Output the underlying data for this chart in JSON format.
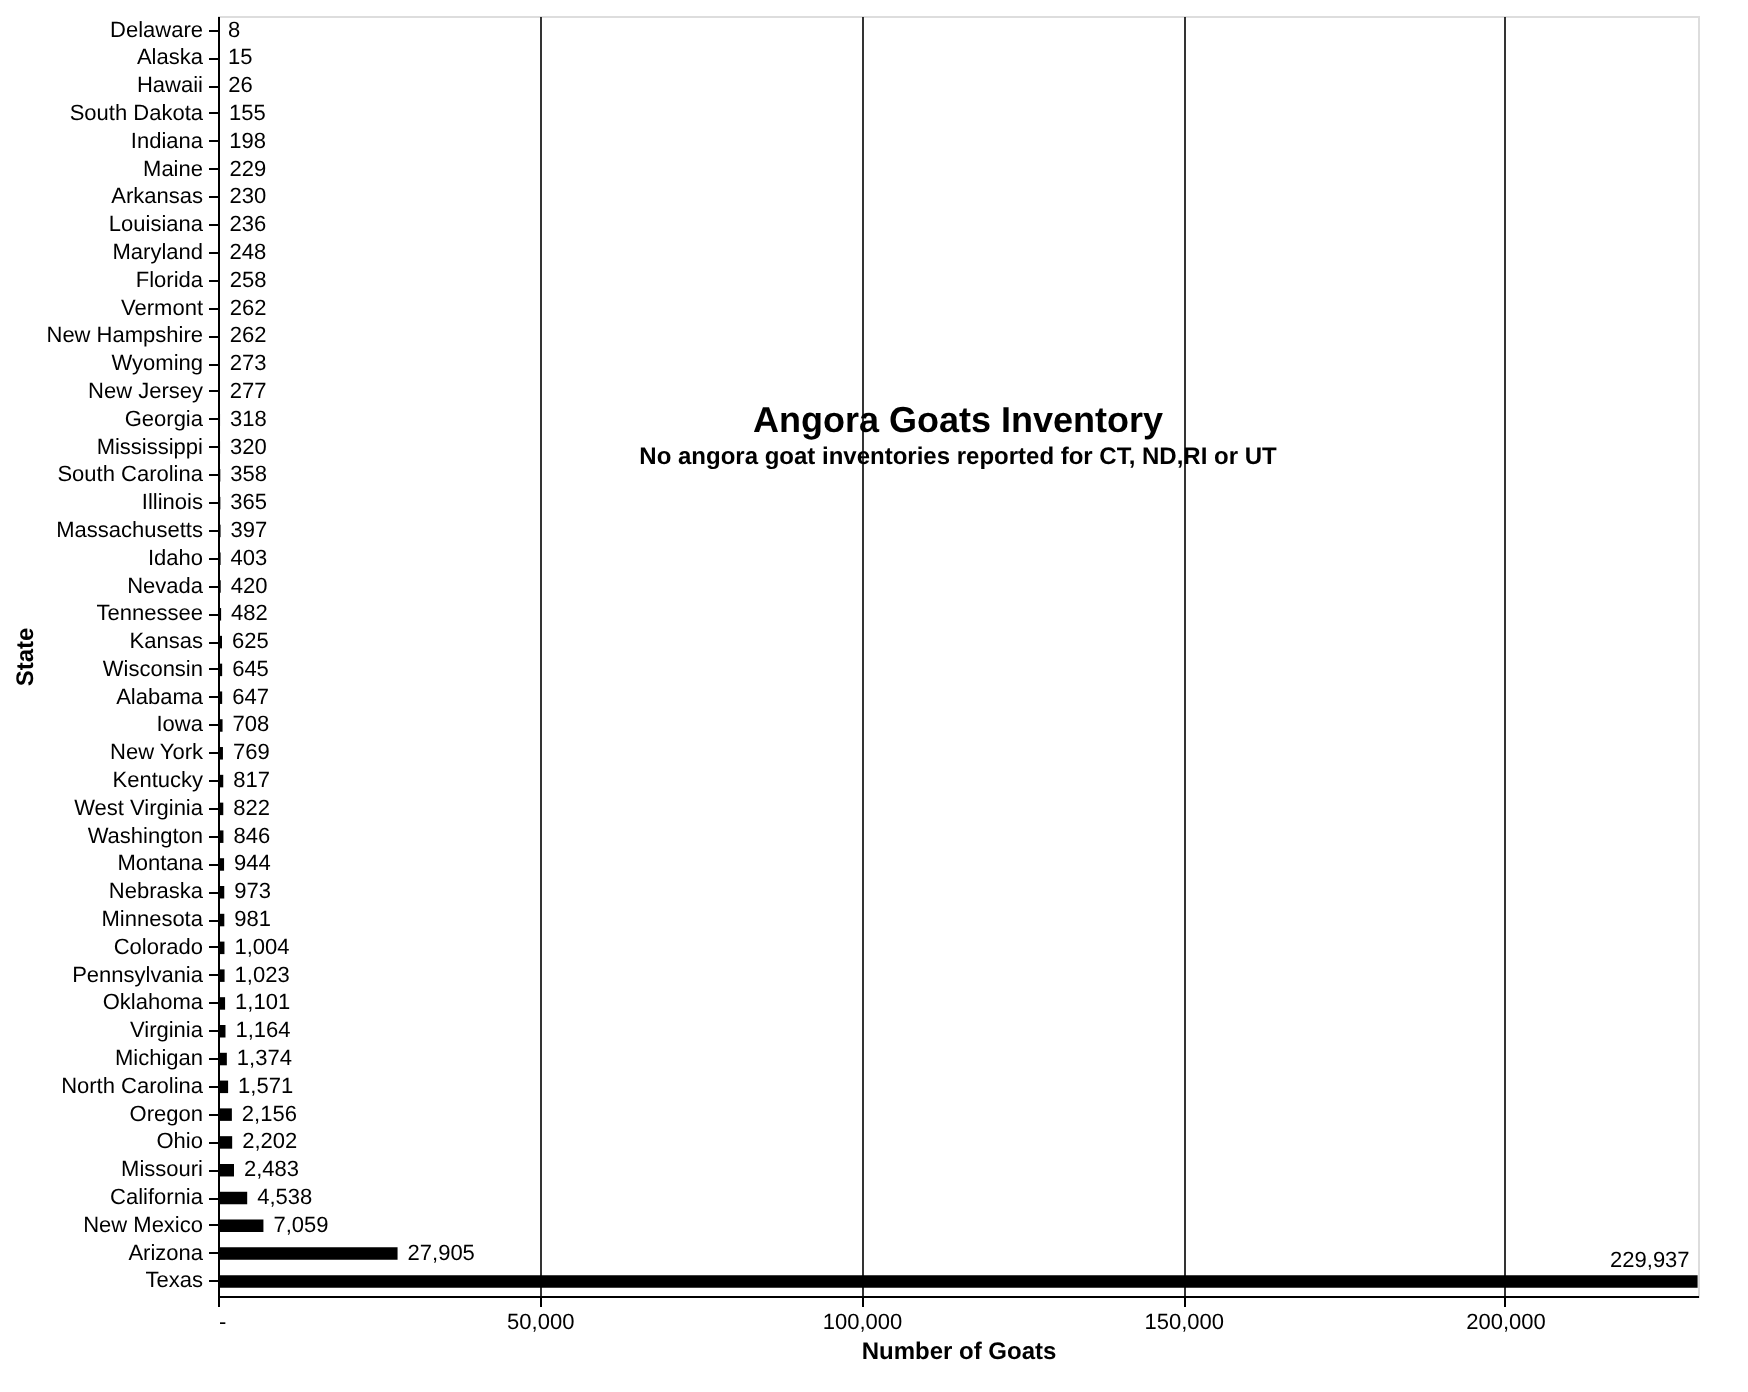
{
  "chart_data": {
    "type": "bar",
    "orientation": "horizontal",
    "title": "Angora Goats Inventory",
    "subtitle": "No angora goat inventories reported for CT, ND,RI or UT",
    "xlabel": "Number of Goats",
    "ylabel": "State",
    "categories": [
      "Delaware",
      "Alaska",
      "Hawaii",
      "South Dakota",
      "Indiana",
      "Maine",
      "Arkansas",
      "Louisiana",
      "Maryland",
      "Florida",
      "Vermont",
      "New Hampshire",
      "Wyoming",
      "New Jersey",
      "Georgia",
      "Mississippi",
      "South Carolina",
      "Illinois",
      "Massachusetts",
      "Idaho",
      "Nevada",
      "Tennessee",
      "Kansas",
      "Wisconsin",
      "Alabama",
      "Iowa",
      "New York",
      "Kentucky",
      "West Virginia",
      "Washington",
      "Montana",
      "Nebraska",
      "Minnesota",
      "Colorado",
      "Pennsylvania",
      "Oklahoma",
      "Virginia",
      "Michigan",
      "North Carolina",
      "Oregon",
      "Ohio",
      "Missouri",
      "California",
      "New Mexico",
      "Arizona",
      "Texas"
    ],
    "values": [
      8,
      15,
      26,
      155,
      198,
      229,
      230,
      236,
      248,
      258,
      262,
      262,
      273,
      277,
      318,
      320,
      358,
      365,
      397,
      403,
      420,
      482,
      625,
      645,
      647,
      708,
      769,
      817,
      822,
      846,
      944,
      973,
      981,
      1004,
      1023,
      1101,
      1164,
      1374,
      1571,
      2156,
      2202,
      2483,
      4538,
      7059,
      27905,
      229937
    ],
    "value_labels": [
      "8",
      "15",
      "26",
      "155",
      "198",
      "229",
      "230",
      "236",
      "248",
      "258",
      "262",
      "262",
      "273",
      "277",
      "318",
      "320",
      "358",
      "365",
      "397",
      "403",
      "420",
      "482",
      "625",
      "645",
      "647",
      "708",
      "769",
      "817",
      "822",
      "846",
      "944",
      "973",
      "981",
      "1,004",
      "1,023",
      "1,101",
      "1,164",
      "1,374",
      "1,571",
      "2,156",
      "2,202",
      "2,483",
      "4,538",
      "7,059",
      "27,905",
      "229,937"
    ],
    "color": "#000000",
    "xlim": [
      0,
      230000
    ],
    "xticks": [
      {
        "value": 0,
        "label": "-"
      },
      {
        "value": 50000,
        "label": "50,000"
      },
      {
        "value": 100000,
        "label": "100,000"
      },
      {
        "value": 150000,
        "label": "150,000"
      },
      {
        "value": 200000,
        "label": "200,000"
      }
    ],
    "grid": "x"
  }
}
